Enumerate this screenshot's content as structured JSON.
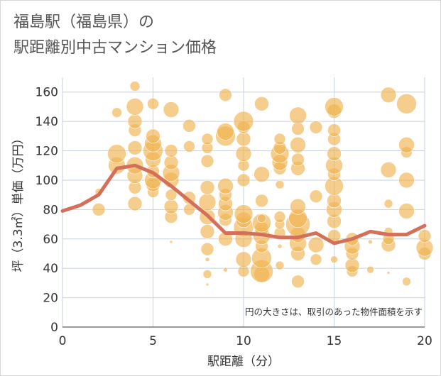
{
  "title_line1": "福島駅（福島県）の",
  "title_line2": "駅距離別中古マンション価格",
  "chart_data": {
    "type": "scatter",
    "xlabel": "駅距離（分）",
    "ylabel": "坪（3.3㎡）単価（万円）",
    "xlim": [
      0,
      20
    ],
    "ylim": [
      0,
      170
    ],
    "x_ticks": [
      0,
      5,
      10,
      15,
      20
    ],
    "y_ticks": [
      0,
      20,
      40,
      60,
      80,
      100,
      120,
      140,
      160
    ],
    "grid": true,
    "note": "円の大きさは、取引のあった物件面積を示す",
    "colors": {
      "bubble": "#f0b24f",
      "line": "#d2705a",
      "grid": "#c6d2e0",
      "plot_bg": "#ffffff"
    },
    "bubbles": [
      [
        2,
        80,
        9
      ],
      [
        2,
        92,
        5
      ],
      [
        3,
        110,
        12
      ],
      [
        3,
        118,
        13
      ],
      [
        3,
        146,
        7
      ],
      [
        4,
        84,
        10
      ],
      [
        4,
        95,
        9
      ],
      [
        4,
        103,
        11
      ],
      [
        4,
        110,
        12
      ],
      [
        4,
        122,
        10
      ],
      [
        4,
        134,
        9
      ],
      [
        4,
        140,
        10
      ],
      [
        4,
        150,
        12
      ],
      [
        4,
        164,
        7
      ],
      [
        5,
        92,
        8
      ],
      [
        5,
        97,
        10
      ],
      [
        5,
        100,
        12
      ],
      [
        5,
        106,
        9
      ],
      [
        5,
        114,
        11
      ],
      [
        5,
        120,
        14
      ],
      [
        5,
        125,
        12
      ],
      [
        5,
        130,
        10
      ],
      [
        5,
        152,
        8
      ],
      [
        6,
        58,
        2
      ],
      [
        6,
        75,
        9
      ],
      [
        6,
        82,
        10
      ],
      [
        6,
        90,
        8
      ],
      [
        6,
        100,
        11
      ],
      [
        6,
        105,
        12
      ],
      [
        6,
        112,
        10
      ],
      [
        6,
        120,
        9
      ],
      [
        6,
        148,
        11
      ],
      [
        7,
        80,
        8
      ],
      [
        7,
        88,
        9
      ],
      [
        7,
        123,
        8
      ],
      [
        7,
        137,
        9
      ],
      [
        8,
        29,
        2
      ],
      [
        8,
        36,
        6
      ],
      [
        8,
        46,
        3
      ],
      [
        8,
        53,
        9
      ],
      [
        8,
        65,
        10
      ],
      [
        8,
        75,
        11
      ],
      [
        8,
        85,
        12
      ],
      [
        8,
        95,
        10
      ],
      [
        8,
        113,
        9
      ],
      [
        8,
        122,
        8
      ],
      [
        8,
        128,
        8
      ],
      [
        9,
        39,
        3
      ],
      [
        9,
        60,
        10
      ],
      [
        9,
        73,
        9
      ],
      [
        9,
        78,
        11
      ],
      [
        9,
        84,
        10
      ],
      [
        9,
        90,
        9
      ],
      [
        9,
        96,
        11
      ],
      [
        9,
        130,
        14
      ],
      [
        9,
        133,
        12
      ],
      [
        9,
        158,
        9
      ],
      [
        10,
        38,
        8
      ],
      [
        10,
        46,
        11
      ],
      [
        10,
        60,
        12
      ],
      [
        10,
        68,
        14
      ],
      [
        10,
        73,
        11
      ],
      [
        10,
        77,
        13
      ],
      [
        10,
        100,
        9
      ],
      [
        10,
        110,
        8
      ],
      [
        10,
        118,
        11
      ],
      [
        10,
        128,
        10
      ],
      [
        10,
        136,
        9
      ],
      [
        10,
        140,
        14
      ],
      [
        11,
        36,
        11
      ],
      [
        11,
        38,
        16
      ],
      [
        11,
        47,
        14
      ],
      [
        11,
        55,
        9
      ],
      [
        11,
        62,
        12
      ],
      [
        11,
        67,
        10
      ],
      [
        11,
        71,
        13
      ],
      [
        11,
        74,
        6
      ],
      [
        11,
        86,
        9
      ],
      [
        11,
        104,
        11
      ],
      [
        11,
        152,
        10
      ],
      [
        12,
        42,
        6
      ],
      [
        12,
        55,
        3
      ],
      [
        12,
        64,
        8
      ],
      [
        12,
        70,
        7
      ],
      [
        12,
        75,
        8
      ],
      [
        12,
        97,
        6
      ],
      [
        12,
        108,
        9
      ],
      [
        12,
        112,
        11
      ],
      [
        12,
        118,
        13
      ],
      [
        12,
        122,
        9
      ],
      [
        12,
        128,
        8
      ],
      [
        13,
        31,
        9
      ],
      [
        13,
        50,
        10
      ],
      [
        13,
        57,
        12
      ],
      [
        13,
        63,
        11
      ],
      [
        13,
        70,
        17
      ],
      [
        13,
        74,
        13
      ],
      [
        13,
        82,
        11
      ],
      [
        13,
        108,
        10
      ],
      [
        13,
        114,
        9
      ],
      [
        13,
        124,
        11
      ],
      [
        13,
        135,
        9
      ],
      [
        13,
        144,
        12
      ],
      [
        14,
        46,
        8
      ],
      [
        14,
        56,
        11
      ],
      [
        14,
        89,
        9
      ],
      [
        14,
        136,
        9
      ],
      [
        15,
        46,
        5
      ],
      [
        15,
        62,
        9
      ],
      [
        15,
        72,
        10
      ],
      [
        15,
        80,
        11
      ],
      [
        15,
        86,
        10
      ],
      [
        15,
        96,
        13
      ],
      [
        15,
        104,
        9
      ],
      [
        15,
        110,
        12
      ],
      [
        15,
        118,
        10
      ],
      [
        15,
        128,
        9
      ],
      [
        15,
        134,
        9
      ],
      [
        15,
        147,
        10
      ],
      [
        15,
        150,
        13
      ],
      [
        16,
        38,
        8
      ],
      [
        16,
        42,
        10
      ],
      [
        16,
        50,
        9
      ],
      [
        16,
        55,
        11
      ],
      [
        16,
        60,
        9
      ],
      [
        17,
        39,
        5
      ],
      [
        17,
        58,
        3
      ],
      [
        18,
        37,
        2
      ],
      [
        18,
        56,
        10
      ],
      [
        18,
        60,
        8
      ],
      [
        18,
        65,
        6
      ],
      [
        18,
        84,
        6
      ],
      [
        18,
        107,
        11
      ],
      [
        18,
        158,
        11
      ],
      [
        19,
        31,
        6
      ],
      [
        19,
        79,
        11
      ],
      [
        19,
        100,
        11
      ],
      [
        19,
        119,
        8
      ],
      [
        19,
        124,
        11
      ],
      [
        19,
        152,
        14
      ],
      [
        20,
        50,
        9
      ],
      [
        20,
        54,
        12
      ],
      [
        20,
        62,
        9
      ]
    ],
    "trend_line": {
      "x": [
        0,
        1,
        2,
        3,
        4,
        5,
        6,
        7,
        8,
        9,
        10,
        11,
        12,
        13,
        14,
        15,
        16,
        17,
        18,
        19,
        20
      ],
      "y": [
        79,
        83,
        90,
        108,
        110,
        105,
        96,
        86,
        76,
        64,
        64,
        63,
        61,
        61,
        64,
        57,
        60,
        65,
        63,
        63,
        69
      ]
    }
  }
}
